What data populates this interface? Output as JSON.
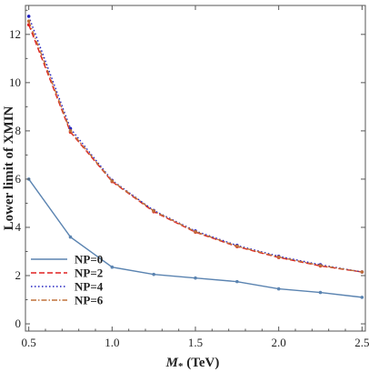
{
  "chart_data": {
    "type": "line",
    "xlabel": "M* (TeV)",
    "xlabel_parts": {
      "symbol": "M",
      "subscript": "*",
      "unit": " (TeV)"
    },
    "ylabel": "Lower  limit of XMIN",
    "xlim": [
      0.48,
      2.52
    ],
    "ylim": [
      -0.3,
      13.2
    ],
    "xticks": [
      "0.5",
      "1.0",
      "1.5",
      "2.0",
      "2.5"
    ],
    "xtick_values": [
      0.5,
      1.0,
      1.5,
      2.0,
      2.5
    ],
    "yticks": [
      "0",
      "2",
      "4",
      "6",
      "8",
      "10",
      "12"
    ],
    "ytick_values": [
      0,
      2,
      4,
      6,
      8,
      10,
      12
    ],
    "grid": false,
    "legend_position": "lower-left",
    "x": [
      0.5,
      0.75,
      1.0,
      1.25,
      1.5,
      1.75,
      2.0,
      2.25,
      2.5
    ],
    "series": [
      {
        "name": "NP=0",
        "color": "#5b84b1",
        "dash": "solid",
        "values": [
          6.0,
          3.6,
          2.35,
          2.05,
          1.9,
          1.75,
          1.45,
          1.3,
          1.1
        ]
      },
      {
        "name": "NP=2",
        "color": "#e02020",
        "dash": "dashed",
        "values": [
          12.4,
          7.95,
          5.9,
          4.65,
          3.8,
          3.2,
          2.75,
          2.4,
          2.15
        ]
      },
      {
        "name": "NP=4",
        "color": "#2020c0",
        "dash": "dotted",
        "values": [
          12.75,
          8.1,
          5.95,
          4.7,
          3.85,
          3.25,
          2.8,
          2.45,
          2.15
        ]
      },
      {
        "name": "NP=6",
        "color": "#c0703a",
        "dash": "dashdot",
        "values": [
          12.55,
          8.0,
          5.92,
          4.68,
          3.82,
          3.22,
          2.77,
          2.42,
          2.15
        ]
      }
    ]
  }
}
